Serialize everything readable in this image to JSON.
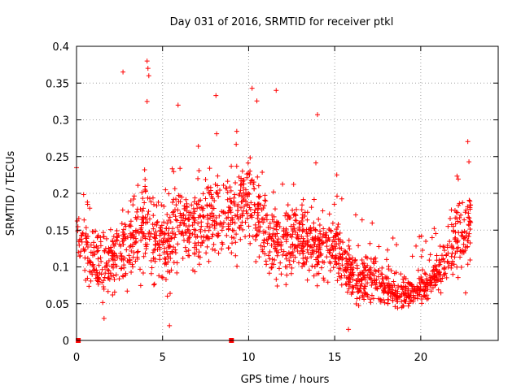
{
  "chart_data": {
    "type": "scatter",
    "title": "Day 031 of 2016, SRMTID for receiver ptkl",
    "xlabel": "GPS time / hours",
    "ylabel": "SRMTID / TECUs",
    "xlim": [
      0,
      24.5
    ],
    "ylim": [
      0,
      0.4
    ],
    "x_ticks": [
      0,
      5,
      10,
      15,
      20
    ],
    "x_tick_labels": [
      "0",
      "5",
      "10",
      "15",
      "20"
    ],
    "y_ticks": [
      0,
      0.05,
      0.1,
      0.15,
      0.2,
      0.25,
      0.3,
      0.35,
      0.4
    ],
    "y_tick_labels": [
      "0",
      "0.05",
      "0.1",
      "0.15",
      "0.2",
      "0.25",
      "0.3",
      "0.35",
      "0.4"
    ],
    "grid": true,
    "marker": "plus",
    "color": "#ff0000",
    "series": [
      {
        "name": "SRMTID",
        "notable_points": [
          {
            "x": 0.1,
            "y": 0.0
          },
          {
            "x": 9.0,
            "y": 0.0
          },
          {
            "x": 0.0,
            "y": 0.235
          },
          {
            "x": 2.7,
            "y": 0.365
          },
          {
            "x": 4.1,
            "y": 0.38
          },
          {
            "x": 4.15,
            "y": 0.37
          },
          {
            "x": 4.2,
            "y": 0.36
          },
          {
            "x": 4.1,
            "y": 0.325
          },
          {
            "x": 5.9,
            "y": 0.32
          },
          {
            "x": 8.1,
            "y": 0.333
          },
          {
            "x": 10.2,
            "y": 0.343
          },
          {
            "x": 11.6,
            "y": 0.34
          },
          {
            "x": 14.0,
            "y": 0.307
          },
          {
            "x": 15.8,
            "y": 0.015
          },
          {
            "x": 5.4,
            "y": 0.02
          },
          {
            "x": 1.6,
            "y": 0.03
          },
          {
            "x": 22.8,
            "y": 0.243
          }
        ],
        "envelope": [
          {
            "x": 0.0,
            "y_median": 0.14,
            "y_spread": 0.045
          },
          {
            "x": 1.0,
            "y_median": 0.11,
            "y_spread": 0.045
          },
          {
            "x": 2.0,
            "y_median": 0.105,
            "y_spread": 0.04
          },
          {
            "x": 3.0,
            "y_median": 0.13,
            "y_spread": 0.05
          },
          {
            "x": 4.0,
            "y_median": 0.16,
            "y_spread": 0.055
          },
          {
            "x": 5.0,
            "y_median": 0.12,
            "y_spread": 0.05
          },
          {
            "x": 6.0,
            "y_median": 0.16,
            "y_spread": 0.05
          },
          {
            "x": 7.0,
            "y_median": 0.15,
            "y_spread": 0.045
          },
          {
            "x": 8.0,
            "y_median": 0.17,
            "y_spread": 0.05
          },
          {
            "x": 9.0,
            "y_median": 0.17,
            "y_spread": 0.05
          },
          {
            "x": 10.0,
            "y_median": 0.2,
            "y_spread": 0.055
          },
          {
            "x": 11.0,
            "y_median": 0.14,
            "y_spread": 0.05
          },
          {
            "x": 12.0,
            "y_median": 0.13,
            "y_spread": 0.045
          },
          {
            "x": 13.0,
            "y_median": 0.14,
            "y_spread": 0.04
          },
          {
            "x": 14.0,
            "y_median": 0.13,
            "y_spread": 0.04
          },
          {
            "x": 15.0,
            "y_median": 0.125,
            "y_spread": 0.04
          },
          {
            "x": 16.0,
            "y_median": 0.08,
            "y_spread": 0.03
          },
          {
            "x": 17.0,
            "y_median": 0.085,
            "y_spread": 0.03
          },
          {
            "x": 18.0,
            "y_median": 0.07,
            "y_spread": 0.025
          },
          {
            "x": 19.0,
            "y_median": 0.065,
            "y_spread": 0.02
          },
          {
            "x": 20.0,
            "y_median": 0.07,
            "y_spread": 0.02
          },
          {
            "x": 21.0,
            "y_median": 0.09,
            "y_spread": 0.025
          },
          {
            "x": 22.0,
            "y_median": 0.13,
            "y_spread": 0.04
          },
          {
            "x": 22.9,
            "y_median": 0.15,
            "y_spread": 0.045
          }
        ],
        "x_range_hours": [
          0,
          22.9
        ],
        "approx_point_count": 1800
      }
    ]
  }
}
